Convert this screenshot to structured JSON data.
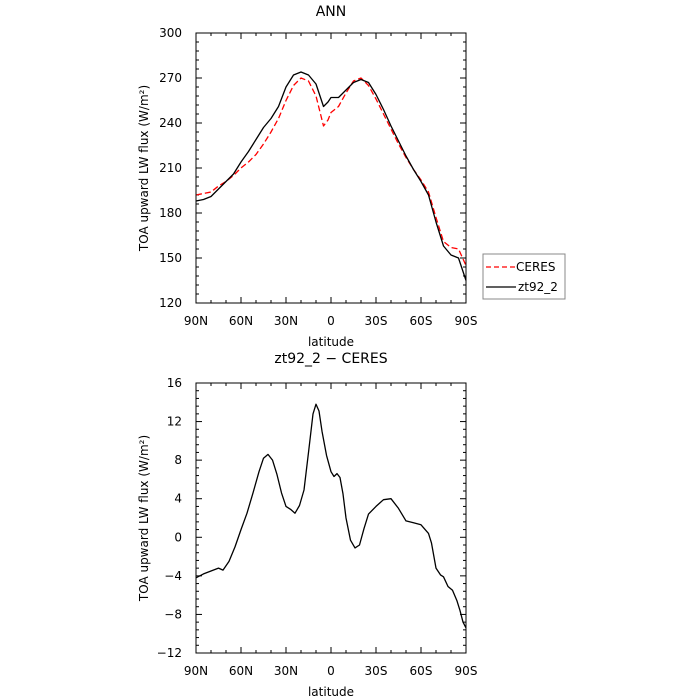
{
  "chart_data": [
    {
      "type": "line",
      "title": "ANN",
      "xlabel": "latitude",
      "ylabel": "TOA upward LW flux (W/m²)",
      "xlim": [
        90,
        -90
      ],
      "ylim": [
        120,
        300
      ],
      "x_ticks": [
        "90N",
        "60N",
        "30N",
        "0",
        "30S",
        "60S",
        "90S"
      ],
      "y_ticks": [
        "120",
        "150",
        "180",
        "210",
        "240",
        "270",
        "300"
      ],
      "legend_position": "right",
      "series": [
        {
          "name": "CERES",
          "color": "#ff0000",
          "dash": "dashed",
          "x": [
            90,
            85,
            80,
            75,
            70,
            65,
            60,
            55,
            50,
            45,
            40,
            35,
            30,
            25,
            20,
            15,
            10,
            5,
            2,
            0,
            -5,
            -10,
            -15,
            -20,
            -25,
            -30,
            -35,
            -40,
            -45,
            -50,
            -55,
            -60,
            -65,
            -70,
            -75,
            -80,
            -85,
            -90
          ],
          "y": [
            192,
            193,
            194,
            198,
            201,
            205,
            210,
            214,
            219,
            226,
            234,
            243,
            255,
            265,
            270,
            268,
            258,
            238,
            242,
            247,
            251,
            260,
            268,
            270,
            265,
            256,
            246,
            236,
            226,
            217,
            209,
            202,
            194,
            177,
            161,
            157,
            156,
            145
          ]
        },
        {
          "name": "zt92_2",
          "color": "#000000",
          "dash": "solid",
          "x": [
            90,
            85,
            80,
            75,
            70,
            65,
            60,
            55,
            50,
            45,
            40,
            35,
            30,
            25,
            20,
            15,
            10,
            5,
            2,
            0,
            -5,
            -10,
            -15,
            -20,
            -25,
            -30,
            -35,
            -40,
            -45,
            -50,
            -55,
            -60,
            -65,
            -70,
            -75,
            -80,
            -85,
            -90
          ],
          "y": [
            188,
            189,
            191,
            196,
            201,
            206,
            214,
            221,
            229,
            237,
            243,
            251,
            264,
            272,
            274,
            272,
            266,
            251,
            254,
            257,
            257,
            262,
            267,
            269,
            267,
            259,
            249,
            238,
            228,
            218,
            209,
            201,
            192,
            174,
            158,
            152,
            150,
            135
          ]
        }
      ]
    },
    {
      "type": "line",
      "title": "zt92_2 − CERES",
      "xlabel": "latitude",
      "ylabel": "TOA upward LW flux (W/m²)",
      "xlim": [
        90,
        -90
      ],
      "ylim": [
        -12,
        16
      ],
      "x_ticks": [
        "90N",
        "60N",
        "30N",
        "0",
        "30S",
        "60S",
        "90S"
      ],
      "y_ticks": [
        "−12",
        "−8",
        "−4",
        "0",
        "4",
        "8",
        "12",
        "16"
      ],
      "series": [
        {
          "color": "#000000",
          "dash": "solid",
          "x": [
            90,
            85,
            80,
            75,
            72,
            68,
            64,
            60,
            56,
            52,
            48,
            45,
            42,
            39,
            36,
            33,
            30,
            27,
            24,
            21,
            18,
            15,
            12,
            10,
            8,
            6,
            3,
            0,
            -2,
            -4,
            -6,
            -8,
            -10,
            -13,
            -16,
            -19,
            -22,
            -25,
            -30,
            -35,
            -40,
            -45,
            -50,
            -55,
            -60,
            -65,
            -67,
            -70,
            -73,
            -75,
            -78,
            -81,
            -84,
            -86,
            -88,
            -90
          ],
          "y": [
            -4.2,
            -3.8,
            -3.5,
            -3.2,
            -3.4,
            -2.5,
            -1.0,
            0.8,
            2.5,
            4.6,
            6.8,
            8.2,
            8.6,
            8.0,
            6.5,
            4.6,
            3.2,
            2.9,
            2.5,
            3.3,
            4.9,
            8.8,
            12.8,
            13.8,
            13.1,
            11.0,
            8.5,
            6.8,
            6.3,
            6.6,
            6.2,
            4.5,
            2.0,
            -0.3,
            -1.1,
            -0.8,
            0.9,
            2.4,
            3.2,
            3.9,
            4.0,
            3.0,
            1.7,
            1.5,
            1.3,
            0.4,
            -0.6,
            -3.2,
            -3.9,
            -4.1,
            -5.1,
            -5.5,
            -6.6,
            -7.6,
            -8.8,
            -9.4
          ]
        }
      ]
    }
  ]
}
